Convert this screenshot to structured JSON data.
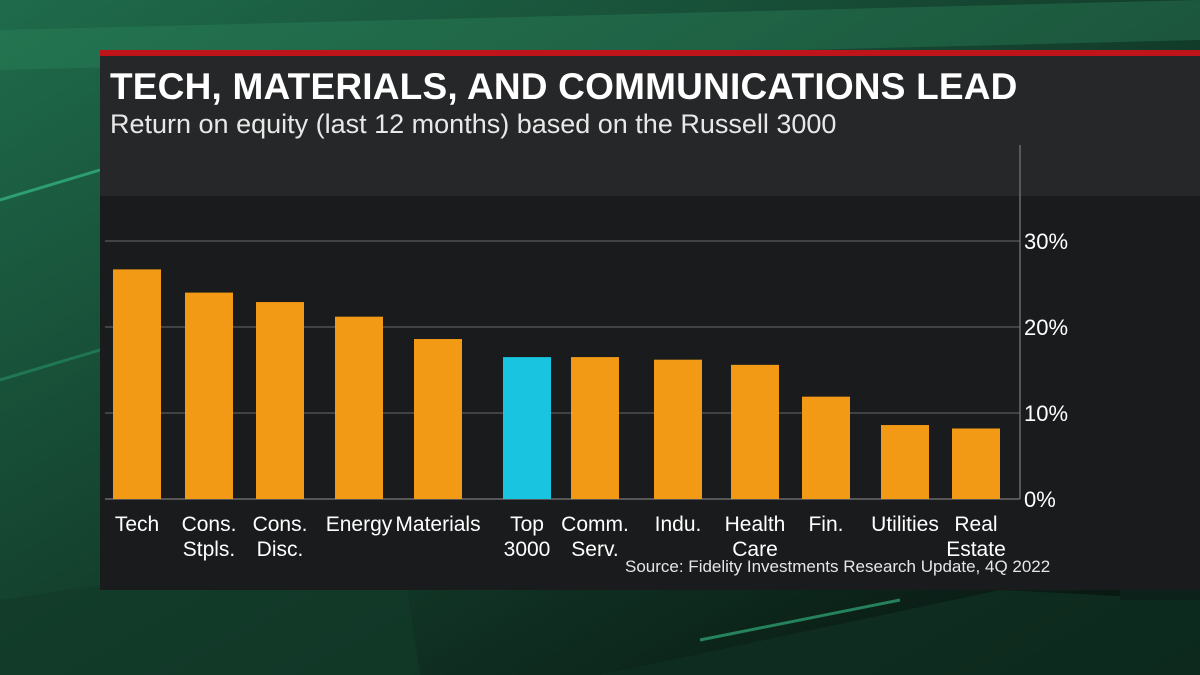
{
  "header": {
    "title": "TECH, MATERIALS, AND COMMUNICATIONS LEAD",
    "subtitle": "Return on equity (last 12 months) based on the Russell 3000"
  },
  "source": "Source: Fidelity Investments Research Update, 4Q 2022",
  "colors": {
    "bar": "#f29a16",
    "highlight_bar": "#18c4e0",
    "accent_line": "#c0141b",
    "panel": "#1a1b1c",
    "header": "#262728",
    "gridline": "#6a6a6a",
    "text": "#ffffff"
  },
  "chart_data": {
    "type": "bar",
    "categories": [
      [
        "Tech"
      ],
      [
        "Cons.",
        "Stpls."
      ],
      [
        "Cons.",
        "Disc."
      ],
      [
        "Energy"
      ],
      [
        "Materials"
      ],
      [
        "Top",
        "3000"
      ],
      [
        "Comm.",
        "Serv."
      ],
      [
        "Indu."
      ],
      [
        "Health",
        "Care"
      ],
      [
        "Fin."
      ],
      [
        "Utilities"
      ],
      [
        "Real",
        "Estate"
      ]
    ],
    "values": [
      26.7,
      24.0,
      22.9,
      21.2,
      18.6,
      16.5,
      16.5,
      16.2,
      15.6,
      11.9,
      8.6,
      8.2
    ],
    "highlight_index": 5,
    "y_tick_labels": [
      "0%",
      "10%",
      "20%",
      "30%"
    ],
    "y_ticks": [
      0,
      10,
      20,
      30
    ],
    "ylim": [
      0,
      41
    ],
    "y_axis_position": "right",
    "grid": true
  }
}
